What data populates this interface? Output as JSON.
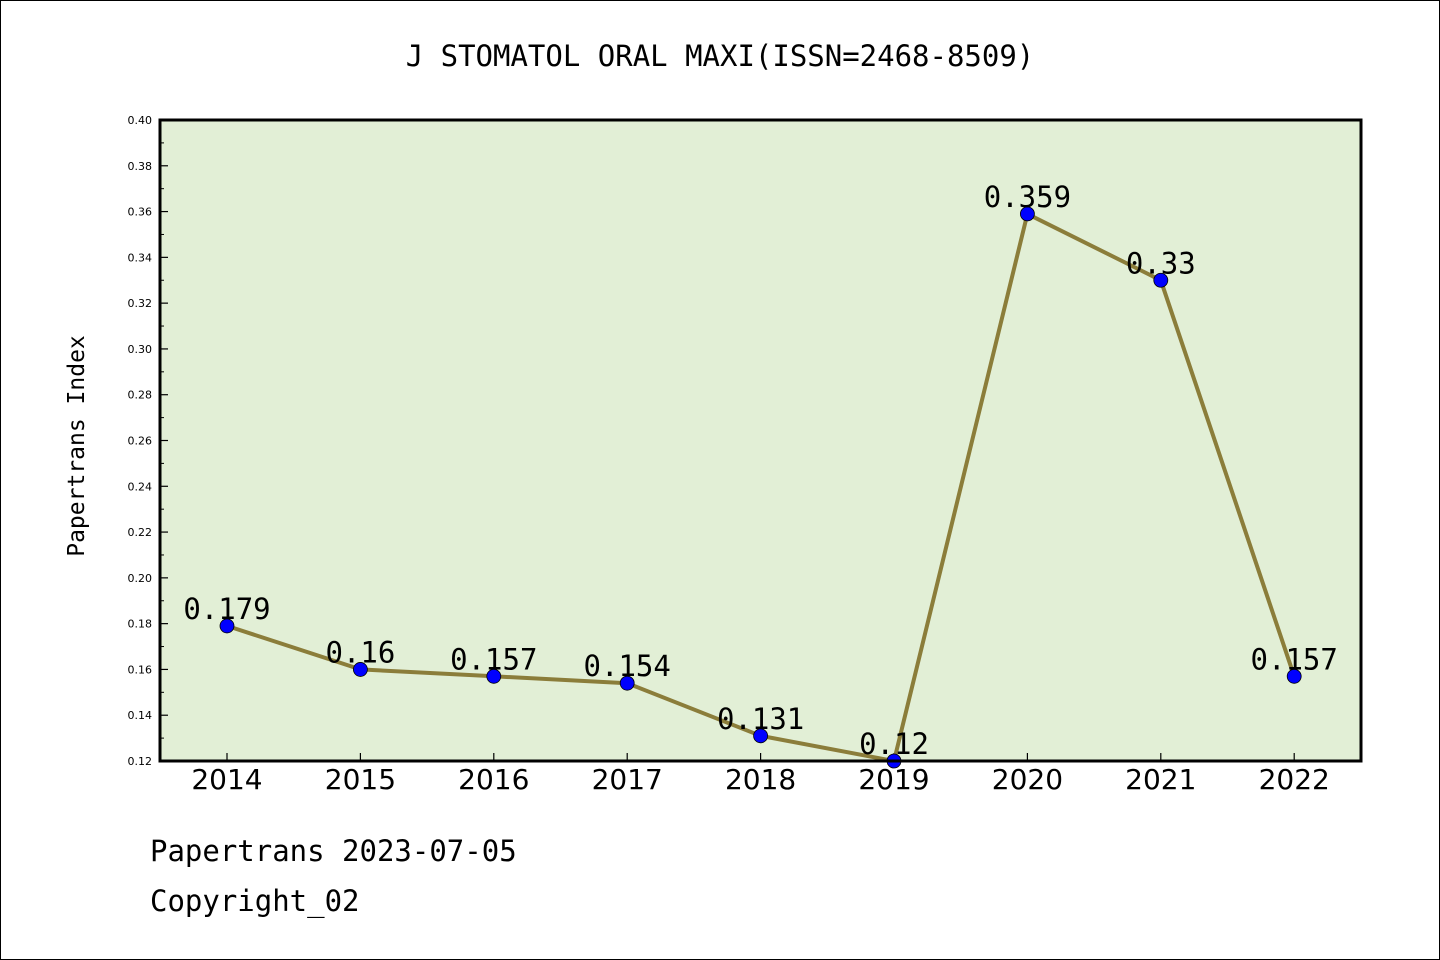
{
  "chart_data": {
    "type": "line",
    "title": "J STOMATOL ORAL MAXI(ISSN=2468-8509)",
    "xlabel": "",
    "ylabel": "Papertrans Index",
    "categories": [
      "2014",
      "2015",
      "2016",
      "2017",
      "2018",
      "2019",
      "2020",
      "2021",
      "2022"
    ],
    "values": [
      0.179,
      0.16,
      0.157,
      0.154,
      0.131,
      0.12,
      0.359,
      0.33,
      0.157
    ],
    "data_labels": [
      "0.179",
      "0.16",
      "0.157",
      "0.154",
      "0.131",
      "0.12",
      "0.359",
      "0.33",
      "0.157"
    ],
    "ylim": [
      0.12,
      0.4
    ],
    "yticks": [
      0.12,
      0.14,
      0.16,
      0.18,
      0.2,
      0.22,
      0.24,
      0.26,
      0.28,
      0.3,
      0.32,
      0.34,
      0.36,
      0.38,
      0.4
    ],
    "ytick_labels": [
      "0.12",
      "0.14",
      "0.16",
      "0.18",
      "0.20",
      "0.22",
      "0.24",
      "0.26",
      "0.28",
      "0.30",
      "0.32",
      "0.34",
      "0.36",
      "0.38",
      "0.40"
    ],
    "grid": false,
    "colors": {
      "plot_background": "#e2efd6",
      "line": "#8b7d3a",
      "marker": "#0000ff"
    }
  },
  "footer": {
    "source": "Papertrans 2023-07-05",
    "copyright": "Copyright_02"
  }
}
